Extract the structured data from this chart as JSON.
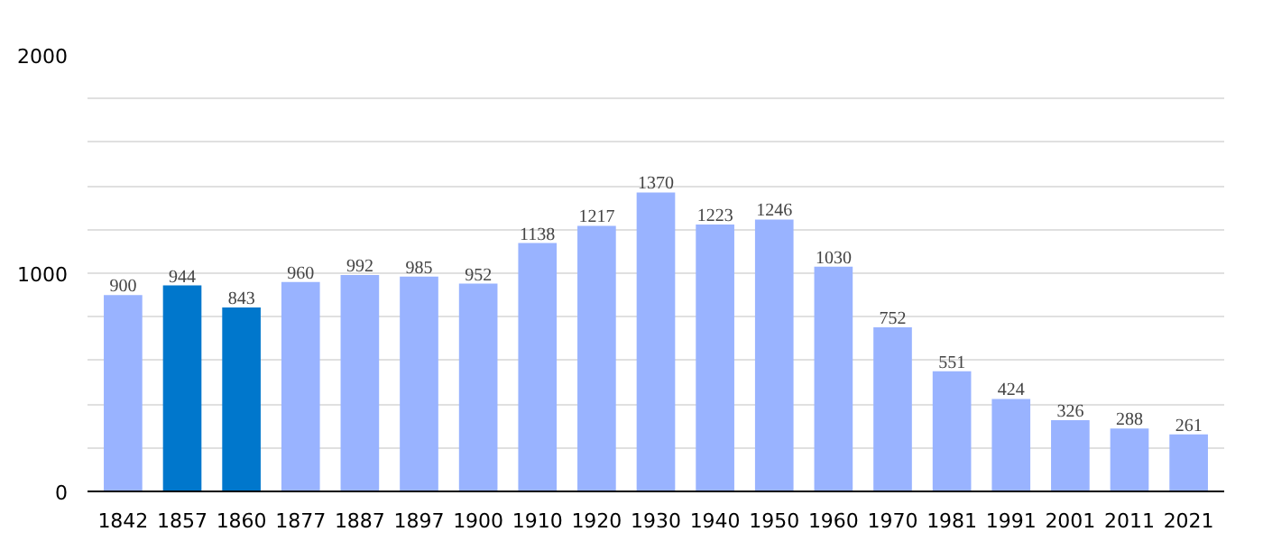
{
  "chart_data": {
    "type": "bar",
    "categories": [
      "1842",
      "1857",
      "1860",
      "1877",
      "1887",
      "1897",
      "1900",
      "1910",
      "1920",
      "1930",
      "1940",
      "1950",
      "1960",
      "1970",
      "1981",
      "1991",
      "2001",
      "2011",
      "2021"
    ],
    "values": [
      900,
      944,
      843,
      960,
      992,
      985,
      952,
      1138,
      1217,
      1370,
      1223,
      1246,
      1030,
      752,
      551,
      424,
      326,
      288,
      261
    ],
    "colors": [
      "#99b3ff",
      "#0077cc",
      "#0077cc",
      "#99b3ff",
      "#99b3ff",
      "#99b3ff",
      "#99b3ff",
      "#99b3ff",
      "#99b3ff",
      "#99b3ff",
      "#99b3ff",
      "#99b3ff",
      "#99b3ff",
      "#99b3ff",
      "#99b3ff",
      "#99b3ff",
      "#99b3ff",
      "#99b3ff",
      "#99b3ff"
    ],
    "ylim": [
      0,
      2000
    ],
    "yticks": [
      0,
      {
        "value": 200,
        "label": null
      },
      {
        "value": 400,
        "label": null
      },
      {
        "value": 600,
        "label": null
      },
      {
        "value": 800,
        "label": null
      },
      1000,
      {
        "value": 1200,
        "label": null
      },
      {
        "value": 1400,
        "label": null
      },
      {
        "value": 1600,
        "label": null
      },
      {
        "value": 1800,
        "label": null
      },
      2000
    ],
    "grid": "y",
    "data_labels": true
  }
}
